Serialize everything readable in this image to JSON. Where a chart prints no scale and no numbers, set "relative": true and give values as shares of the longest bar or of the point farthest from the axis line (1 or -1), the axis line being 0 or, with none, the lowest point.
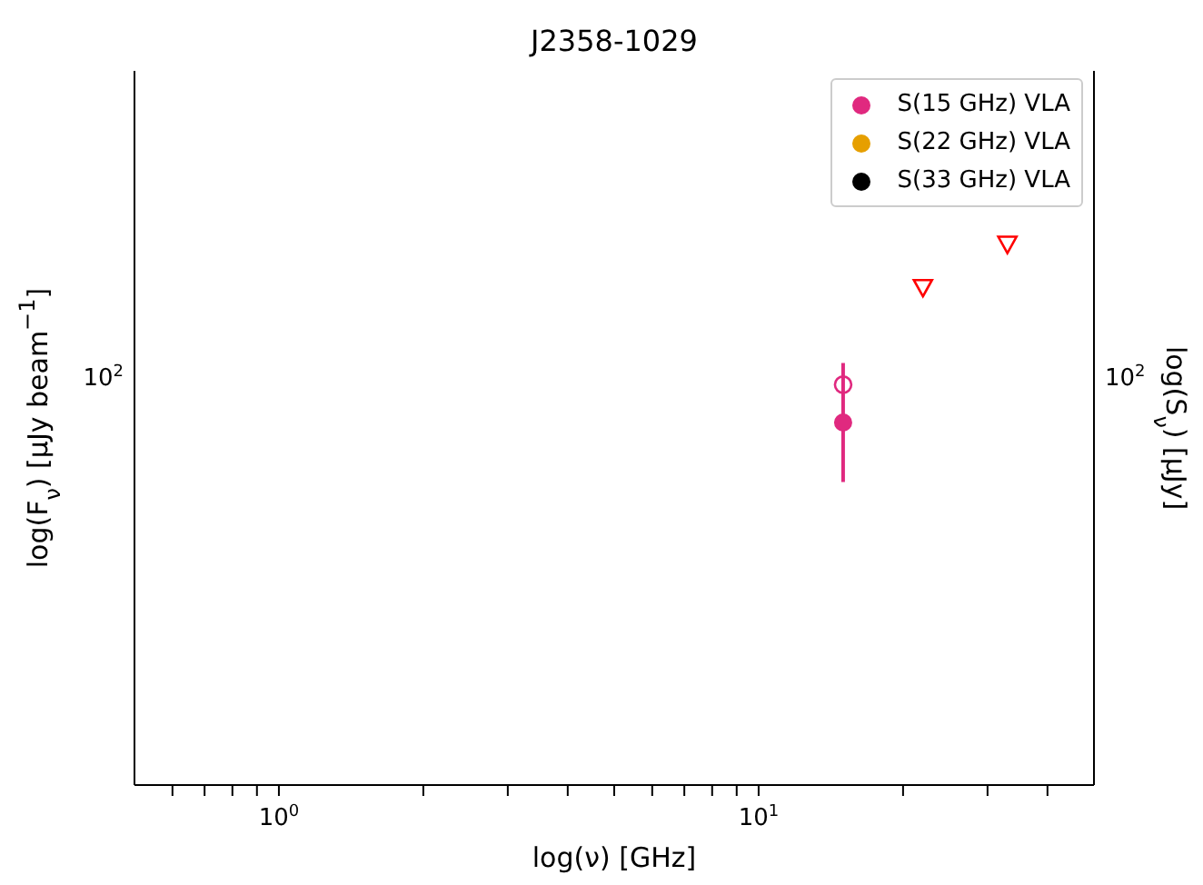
{
  "chart_data": {
    "type": "scatter",
    "title": "J2358-1029",
    "xlabel": "log(ν) [GHz]",
    "ylabel": "log(F$_{ν}$) [μJy beam$^{−1}$]",
    "y2label": "log(S$_{ν}$) [μJy]",
    "log": "x",
    "relative": true,
    "legend": "top right",
    "annotations": [
      "10$^{2}$",
      "10$^{2}$"
    ],
    "xlim": [
      0.5,
      50
    ],
    "xticks": [
      {
        "value": 0.6,
        "label": null
      },
      {
        "value": 0.7,
        "label": null
      },
      {
        "value": 0.8,
        "label": null
      },
      {
        "value": 0.9,
        "label": null
      },
      {
        "value": 1,
        "label": "10$^{0}$"
      },
      {
        "value": 2,
        "label": null
      },
      {
        "value": 3,
        "label": null
      },
      {
        "value": 4,
        "label": null
      },
      {
        "value": 5,
        "label": null
      },
      {
        "value": 6,
        "label": null
      },
      {
        "value": 7,
        "label": null
      },
      {
        "value": 8,
        "label": null
      },
      {
        "value": 9,
        "label": null
      },
      {
        "value": 10,
        "label": "10$^{1}$"
      },
      {
        "value": 20,
        "label": null
      },
      {
        "value": 30,
        "label": null
      },
      {
        "value": 40,
        "label": null
      }
    ],
    "series": [
      {
        "type": "line",
        "color": "#e0297f",
        "marker": "none",
        "x": [
          15,
          15
        ],
        "values": [
          0.56,
          0.78
        ]
      },
      {
        "name": "S(15 GHz) VLA",
        "color": "#e0297f",
        "marker": "circle",
        "x": [
          15
        ],
        "values": [
          0.67
        ]
      },
      {
        "name": "S(22 GHz) VLA",
        "color": "#e69f00",
        "marker": "circle"
      },
      {
        "name": "S(33 GHz) VLA",
        "color": "#000000",
        "marker": "circle"
      },
      {
        "color": "#e0297f",
        "marker": "circle",
        "x": [
          15
        ],
        "values": [
          0.74
        ]
      },
      {
        "color": "#ff0000",
        "marker": "triangle",
        "x": [
          22,
          33
        ],
        "values": [
          0.92,
          1
        ]
      }
    ]
  }
}
